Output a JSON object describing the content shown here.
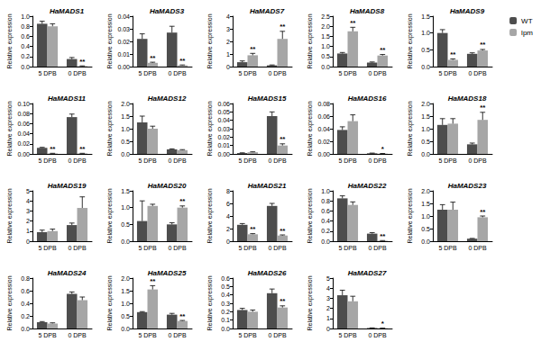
{
  "chart_data": [
    {
      "type": "bar",
      "title": "HaMADS1",
      "ylabel": "Relative expression",
      "categories": [
        "5 DPB",
        "0 DPB"
      ],
      "legend": "top-right",
      "ylim": [
        0,
        1.0
      ],
      "yticks": [
        {
          "value": 0,
          "label": "0.0"
        },
        0.2,
        0.4,
        0.6,
        0.8,
        {
          "value": 1.0,
          "label": "1.0"
        }
      ],
      "series": [
        {
          "name": "WT",
          "color": "#4d4d4d",
          "values": [
            0.85,
            0.15
          ],
          "errors": [
            0.05,
            0.03
          ],
          "significance": [
            null,
            null
          ]
        },
        {
          "name": "lpm",
          "color": "#a6a6a6",
          "values": [
            0.8,
            0.01
          ],
          "errors": [
            0.05,
            0.005
          ],
          "significance": [
            null,
            "**"
          ]
        }
      ]
    },
    {
      "type": "bar",
      "title": "HaMADS3",
      "ylabel": "Relative expression",
      "categories": [
        "5 DPB",
        "0 DPB"
      ],
      "ylim": [
        0,
        0.04
      ],
      "yticks": [
        {
          "value": 0,
          "label": "0.00"
        },
        0.01,
        0.02,
        0.03,
        0.04
      ],
      "series": [
        {
          "name": "WT",
          "color": "#4d4d4d",
          "values": [
            0.022,
            0.027
          ],
          "errors": [
            0.004,
            0.005
          ],
          "significance": [
            null,
            null
          ]
        },
        {
          "name": "lpm",
          "color": "#a6a6a6",
          "values": [
            0.003,
            0.001
          ],
          "errors": [
            0.0005,
            0.0003
          ],
          "significance": [
            "**",
            "**"
          ]
        }
      ]
    },
    {
      "type": "bar",
      "title": "HaMADS7",
      "ylabel": "Relative expression",
      "categories": [
        "5 DPB",
        "0 DPB"
      ],
      "ylim": [
        0,
        4
      ],
      "yticks": [
        0,
        1,
        2,
        3,
        4
      ],
      "series": [
        {
          "name": "WT",
          "color": "#4d4d4d",
          "values": [
            0.35,
            0.1
          ],
          "errors": [
            0.1,
            0.03
          ],
          "significance": [
            null,
            null
          ]
        },
        {
          "name": "lpm",
          "color": "#a6a6a6",
          "values": [
            0.9,
            2.2
          ],
          "errors": [
            0.15,
            0.6
          ],
          "significance": [
            "**",
            "**"
          ]
        }
      ]
    },
    {
      "type": "bar",
      "title": "HaMADS8",
      "ylabel": "Relative expression",
      "categories": [
        "5 DPB",
        "0 DPB"
      ],
      "ylim": [
        0,
        2.5
      ],
      "yticks": [
        {
          "value": 0,
          "label": "0.0"
        },
        0.5,
        {
          "value": 1,
          "label": "1.0"
        },
        1.5,
        {
          "value": 2,
          "label": "2.0"
        },
        2.5
      ],
      "series": [
        {
          "name": "WT",
          "color": "#4d4d4d",
          "values": [
            0.65,
            0.2
          ],
          "errors": [
            0.05,
            0.03
          ],
          "significance": [
            null,
            null
          ]
        },
        {
          "name": "lpm",
          "color": "#a6a6a6",
          "values": [
            1.75,
            0.55
          ],
          "errors": [
            0.2,
            0.05
          ],
          "significance": [
            "**",
            "**"
          ]
        }
      ]
    },
    {
      "type": "bar",
      "title": "HaMADS9",
      "ylabel": "Relative expression",
      "categories": [
        "5 DPB",
        "0 DPB"
      ],
      "ylim": [
        0,
        1.5
      ],
      "yticks": [
        {
          "value": 0,
          "label": "0.0"
        },
        0.5,
        {
          "value": 1,
          "label": "1.0"
        },
        1.5
      ],
      "series": [
        {
          "name": "WT",
          "color": "#4d4d4d",
          "values": [
            1.0,
            0.38
          ],
          "errors": [
            0.1,
            0.03
          ],
          "significance": [
            null,
            null
          ]
        },
        {
          "name": "lpm",
          "color": "#a6a6a6",
          "values": [
            0.2,
            0.48
          ],
          "errors": [
            0.03,
            0.03
          ],
          "significance": [
            "**",
            "**"
          ]
        }
      ]
    },
    {
      "type": "bar",
      "title": "HaMADS11",
      "ylabel": "Relative expression",
      "categories": [
        "5 DPB",
        "0 DPB"
      ],
      "ylim": [
        0,
        0.1
      ],
      "yticks": [
        {
          "value": 0,
          "label": "0.00"
        },
        0.02,
        0.04,
        0.06,
        0.08,
        {
          "value": 0.1,
          "label": "0.10"
        }
      ],
      "series": [
        {
          "name": "WT",
          "color": "#4d4d4d",
          "values": [
            0.012,
            0.073
          ],
          "errors": [
            0.001,
            0.006
          ],
          "significance": [
            null,
            null
          ]
        },
        {
          "name": "lpm",
          "color": "#a6a6a6",
          "values": [
            0.001,
            0.001
          ],
          "errors": [
            0.0002,
            0.0002
          ],
          "significance": [
            "**",
            "**"
          ]
        }
      ]
    },
    {
      "type": "bar",
      "title": "HaMADS12",
      "ylabel": "Relative expression",
      "categories": [
        "5 DPB",
        "0 DPB"
      ],
      "ylim": [
        0,
        2.0
      ],
      "yticks": [
        {
          "value": 0,
          "label": "0.0"
        },
        0.5,
        {
          "value": 1,
          "label": "1.0"
        },
        1.5,
        {
          "value": 2,
          "label": "2.0"
        }
      ],
      "series": [
        {
          "name": "WT",
          "color": "#4d4d4d",
          "values": [
            1.25,
            0.18
          ],
          "errors": [
            0.25,
            0.02
          ],
          "significance": [
            null,
            null
          ]
        },
        {
          "name": "lpm",
          "color": "#a6a6a6",
          "values": [
            1.0,
            0.15
          ],
          "errors": [
            0.1,
            0.02
          ],
          "significance": [
            null,
            null
          ]
        }
      ]
    },
    {
      "type": "bar",
      "title": "HaMADS15",
      "ylabel": "Relative expression",
      "categories": [
        "5 DPB",
        "0 DPB"
      ],
      "ylim": [
        0,
        0.06
      ],
      "yticks": [
        {
          "value": 0,
          "label": "0.00"
        },
        0.01,
        0.02,
        0.03,
        0.04,
        0.05,
        0.06
      ],
      "series": [
        {
          "name": "WT",
          "color": "#4d4d4d",
          "values": [
            0.001,
            0.045
          ],
          "errors": [
            0.0003,
            0.005
          ],
          "significance": [
            null,
            null
          ]
        },
        {
          "name": "lpm",
          "color": "#a6a6a6",
          "values": [
            0.002,
            0.01
          ],
          "errors": [
            0.0005,
            0.002
          ],
          "significance": [
            null,
            "**"
          ]
        }
      ]
    },
    {
      "type": "bar",
      "title": "HaMADS16",
      "ylabel": "Relative expression",
      "categories": [
        "5 DPB",
        "0 DPB"
      ],
      "ylim": [
        0,
        0.08
      ],
      "yticks": [
        {
          "value": 0,
          "label": "0.00"
        },
        0.02,
        0.04,
        0.06,
        0.08
      ],
      "series": [
        {
          "name": "WT",
          "color": "#4d4d4d",
          "values": [
            0.038,
            0.001
          ],
          "errors": [
            0.005,
            0.0003
          ],
          "significance": [
            null,
            null
          ]
        },
        {
          "name": "lpm",
          "color": "#a6a6a6",
          "values": [
            0.052,
            0.0005
          ],
          "errors": [
            0.01,
            0.0002
          ],
          "significance": [
            null,
            "*"
          ]
        }
      ]
    },
    {
      "type": "bar",
      "title": "HaMADS18",
      "ylabel": "Relative expression",
      "categories": [
        "5 DPB",
        "0 DPB"
      ],
      "ylim": [
        0,
        2.0
      ],
      "yticks": [
        {
          "value": 0,
          "label": "0.0"
        },
        0.5,
        {
          "value": 1,
          "label": "1.0"
        },
        1.5,
        {
          "value": 2,
          "label": "2.0"
        }
      ],
      "series": [
        {
          "name": "WT",
          "color": "#4d4d4d",
          "values": [
            1.15,
            0.38
          ],
          "errors": [
            0.25,
            0.05
          ],
          "significance": [
            null,
            null
          ]
        },
        {
          "name": "lpm",
          "color": "#a6a6a6",
          "values": [
            1.2,
            1.35
          ],
          "errors": [
            0.2,
            0.3
          ],
          "significance": [
            null,
            "**"
          ]
        }
      ]
    },
    {
      "type": "bar",
      "title": "HaMADS19",
      "ylabel": "Relative expression",
      "categories": [
        "5 DPB",
        "0 DPB"
      ],
      "ylim": [
        0,
        5
      ],
      "yticks": [
        0,
        1,
        2,
        3,
        4,
        5
      ],
      "series": [
        {
          "name": "WT",
          "color": "#4d4d4d",
          "values": [
            0.9,
            1.6
          ],
          "errors": [
            0.2,
            0.2
          ],
          "significance": [
            null,
            null
          ]
        },
        {
          "name": "lpm",
          "color": "#a6a6a6",
          "values": [
            1.0,
            3.3
          ],
          "errors": [
            0.2,
            1.1
          ],
          "significance": [
            null,
            null
          ]
        }
      ]
    },
    {
      "type": "bar",
      "title": "HaMADS20",
      "ylabel": "Relative expression",
      "categories": [
        "5 DPB",
        "0 DPB"
      ],
      "ylim": [
        0,
        1.5
      ],
      "yticks": [
        {
          "value": 0,
          "label": "0.0"
        },
        0.5,
        {
          "value": 1,
          "label": "1.0"
        },
        1.5
      ],
      "series": [
        {
          "name": "WT",
          "color": "#4d4d4d",
          "values": [
            0.6,
            0.5
          ],
          "errors": [
            0.6,
            0.05
          ],
          "significance": [
            null,
            null
          ]
        },
        {
          "name": "lpm",
          "color": "#a6a6a6",
          "values": [
            1.05,
            1.0
          ],
          "errors": [
            0.05,
            0.05
          ],
          "significance": [
            null,
            "**"
          ]
        }
      ]
    },
    {
      "type": "bar",
      "title": "HaMADS21",
      "ylabel": "Relative expression",
      "categories": [
        "5 DPB",
        "0 DPB"
      ],
      "ylim": [
        0,
        8
      ],
      "yticks": [
        0,
        2,
        4,
        6,
        8
      ],
      "series": [
        {
          "name": "WT",
          "color": "#4d4d4d",
          "values": [
            2.6,
            5.6
          ],
          "errors": [
            0.2,
            0.4
          ],
          "significance": [
            null,
            null
          ]
        },
        {
          "name": "lpm",
          "color": "#a6a6a6",
          "values": [
            1.1,
            0.9
          ],
          "errors": [
            0.1,
            0.1
          ],
          "significance": [
            "**",
            "**"
          ]
        }
      ]
    },
    {
      "type": "bar",
      "title": "HaMADS22",
      "ylabel": "Relative expression",
      "categories": [
        "5 DPB",
        "0 DPB"
      ],
      "ylim": [
        0,
        1.0
      ],
      "yticks": [
        {
          "value": 0,
          "label": "0.0"
        },
        0.2,
        0.4,
        0.6,
        0.8,
        {
          "value": 1.0,
          "label": "1.0"
        }
      ],
      "series": [
        {
          "name": "WT",
          "color": "#4d4d4d",
          "values": [
            0.85,
            0.15
          ],
          "errors": [
            0.05,
            0.02
          ],
          "significance": [
            null,
            null
          ]
        },
        {
          "name": "lpm",
          "color": "#a6a6a6",
          "values": [
            0.72,
            0.01
          ],
          "errors": [
            0.06,
            0.003
          ],
          "significance": [
            null,
            "**"
          ]
        }
      ]
    },
    {
      "type": "bar",
      "title": "HaMADS23",
      "ylabel": "Relative expression",
      "categories": [
        "5 DPB",
        "0 DPB"
      ],
      "ylim": [
        0,
        2.0
      ],
      "yticks": [
        {
          "value": 0,
          "label": "0.0"
        },
        0.5,
        {
          "value": 1,
          "label": "1.0"
        },
        1.5,
        {
          "value": 2,
          "label": "2.0"
        }
      ],
      "series": [
        {
          "name": "WT",
          "color": "#4d4d4d",
          "values": [
            1.25,
            0.1
          ],
          "errors": [
            0.2,
            0.01
          ],
          "significance": [
            null,
            null
          ]
        },
        {
          "name": "lpm",
          "color": "#a6a6a6",
          "values": [
            1.25,
            0.95
          ],
          "errors": [
            0.3,
            0.05
          ],
          "significance": [
            null,
            "**"
          ]
        }
      ]
    },
    {
      "type": "bar",
      "title": "HaMADS24",
      "ylabel": "Relative expression",
      "categories": [
        "5 DPB",
        "0 DPB"
      ],
      "ylim": [
        0,
        0.8
      ],
      "yticks": [
        {
          "value": 0,
          "label": "0.0"
        },
        0.2,
        0.4,
        0.6,
        0.8
      ],
      "series": [
        {
          "name": "WT",
          "color": "#4d4d4d",
          "values": [
            0.1,
            0.55
          ],
          "errors": [
            0.01,
            0.03
          ],
          "significance": [
            null,
            null
          ]
        },
        {
          "name": "lpm",
          "color": "#a6a6a6",
          "values": [
            0.08,
            0.45
          ],
          "errors": [
            0.01,
            0.05
          ],
          "significance": [
            null,
            null
          ]
        }
      ]
    },
    {
      "type": "bar",
      "title": "HaMADS25",
      "ylabel": "Relative expression",
      "categories": [
        "5 DPB",
        "0 DPB"
      ],
      "ylim": [
        0,
        2.0
      ],
      "yticks": [
        {
          "value": 0,
          "label": "0.0"
        },
        0.5,
        {
          "value": 1,
          "label": "1.0"
        },
        1.5,
        {
          "value": 2,
          "label": "2.0"
        }
      ],
      "series": [
        {
          "name": "WT",
          "color": "#4d4d4d",
          "values": [
            0.65,
            0.55
          ],
          "errors": [
            0.02,
            0.05
          ],
          "significance": [
            null,
            null
          ]
        },
        {
          "name": "lpm",
          "color": "#a6a6a6",
          "values": [
            1.55,
            0.3
          ],
          "errors": [
            0.15,
            0.02
          ],
          "significance": [
            "**",
            "**"
          ]
        }
      ]
    },
    {
      "type": "bar",
      "title": "HaMADS26",
      "ylabel": "Relative expression",
      "categories": [
        "5 DPB",
        "0 DPB"
      ],
      "ylim": [
        0,
        0.6
      ],
      "yticks": [
        {
          "value": 0,
          "label": "0.0"
        },
        0.1,
        0.2,
        0.3,
        0.4,
        0.5,
        0.6
      ],
      "series": [
        {
          "name": "WT",
          "color": "#4d4d4d",
          "values": [
            0.22,
            0.42
          ],
          "errors": [
            0.02,
            0.05
          ],
          "significance": [
            null,
            null
          ]
        },
        {
          "name": "lpm",
          "color": "#a6a6a6",
          "values": [
            0.2,
            0.25
          ],
          "errors": [
            0.02,
            0.02
          ],
          "significance": [
            null,
            "**"
          ]
        }
      ]
    },
    {
      "type": "bar",
      "title": "HaMADS27",
      "ylabel": "Relative expression",
      "categories": [
        "5 DPB",
        "0 DPB"
      ],
      "ylim": [
        0,
        5
      ],
      "yticks": [
        0,
        1,
        2,
        3,
        4,
        5
      ],
      "series": [
        {
          "name": "WT",
          "color": "#4d4d4d",
          "values": [
            3.3,
            0.05
          ],
          "errors": [
            0.5,
            0.01
          ],
          "significance": [
            null,
            null
          ]
        },
        {
          "name": "lpm",
          "color": "#a6a6a6",
          "values": [
            2.7,
            0.03
          ],
          "errors": [
            0.5,
            0.01
          ],
          "significance": [
            null,
            "*"
          ]
        }
      ]
    }
  ]
}
